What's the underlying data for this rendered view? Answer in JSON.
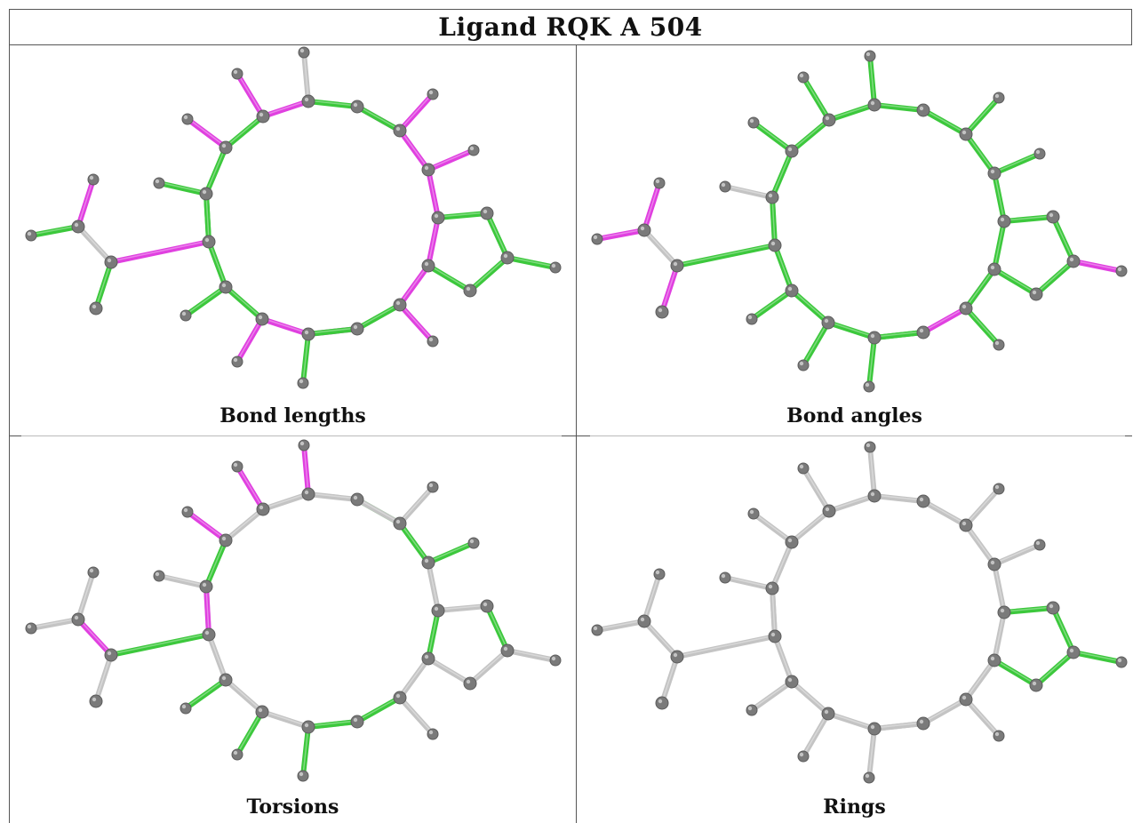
{
  "title": "Ligand RQK A 504",
  "panels": [
    {
      "id": "bond-lengths",
      "caption": "Bond lengths"
    },
    {
      "id": "bond-angles",
      "caption": "Bond angles"
    },
    {
      "id": "torsions",
      "caption": "Torsions"
    },
    {
      "id": "rings",
      "caption": "Rings"
    }
  ],
  "colors": {
    "green": "#3cc83c",
    "magenta": "#e040e0",
    "gray": "#c4c4c4",
    "atom": "#7a7a7a",
    "border": "#555555"
  },
  "molecule": {
    "bond_names": [
      "b01",
      "b02",
      "b03",
      "b04",
      "b05",
      "b06",
      "b07",
      "b08",
      "b09",
      "b10",
      "b11",
      "b12",
      "b13",
      "b14",
      "b15",
      "b16",
      "b17",
      "b18",
      "b19",
      "b20",
      "b21",
      "b22",
      "b23",
      "b24",
      "b25",
      "b26",
      "b27",
      "b28",
      "b29",
      "b30",
      "b31",
      "b32",
      "b33",
      "b34",
      "b35",
      "b36",
      "b37",
      "b38",
      "b39"
    ],
    "bond_colors": {
      "bond-lengths": [
        "green",
        "magenta",
        "gray",
        "green",
        "magenta",
        "green",
        "green",
        "green",
        "magenta",
        "green",
        "magenta",
        "magenta",
        "gray",
        "green",
        "magenta",
        "magenta",
        "magenta",
        "magenta",
        "magenta",
        "magenta",
        "green",
        "green",
        "green",
        "green",
        "green",
        "magenta",
        "magenta",
        "green",
        "magenta",
        "green",
        "magenta",
        "magenta",
        "green",
        "green",
        "green",
        "green",
        "green",
        "green",
        "magenta"
      ],
      "bond-angles": [
        "magenta",
        "magenta",
        "gray",
        "magenta",
        "green",
        "gray",
        "gray",
        "green",
        "green",
        "green",
        "green",
        "green",
        "green",
        "green",
        "green",
        "green",
        "green",
        "green",
        "green",
        "green",
        "green",
        "green",
        "green",
        "green",
        "magenta",
        "magenta",
        "green",
        "magenta",
        "green",
        "green",
        "green",
        "green",
        "green",
        "green",
        "green",
        "green",
        "green",
        "green",
        "green"
      ],
      "torsions": [
        "gray",
        "gray",
        "magenta",
        "gray",
        "green",
        "gray",
        "gray",
        "green",
        "magenta",
        "gray",
        "magenta",
        "gray",
        "magenta",
        "gray",
        "green",
        "gray",
        "green",
        "green",
        "gray",
        "green",
        "gray",
        "green",
        "gray",
        "gray",
        "gray",
        "gray",
        "gray",
        "green",
        "gray",
        "green",
        "gray",
        "green",
        "gray",
        "green",
        "gray",
        "magenta",
        "gray",
        "green",
        "gray"
      ],
      "rings": [
        "gray",
        "gray",
        "gray",
        "gray",
        "gray",
        "gray",
        "gray",
        "gray",
        "gray",
        "gray",
        "gray",
        "gray",
        "gray",
        "gray",
        "gray",
        "gray",
        "gray",
        "gray",
        "gray",
        "gray",
        "green",
        "green",
        "green",
        "green",
        "green",
        "gray",
        "gray",
        "gray",
        "gray",
        "gray",
        "gray",
        "gray",
        "gray",
        "gray",
        "gray",
        "gray",
        "gray",
        "gray",
        "gray"
      ]
    }
  }
}
